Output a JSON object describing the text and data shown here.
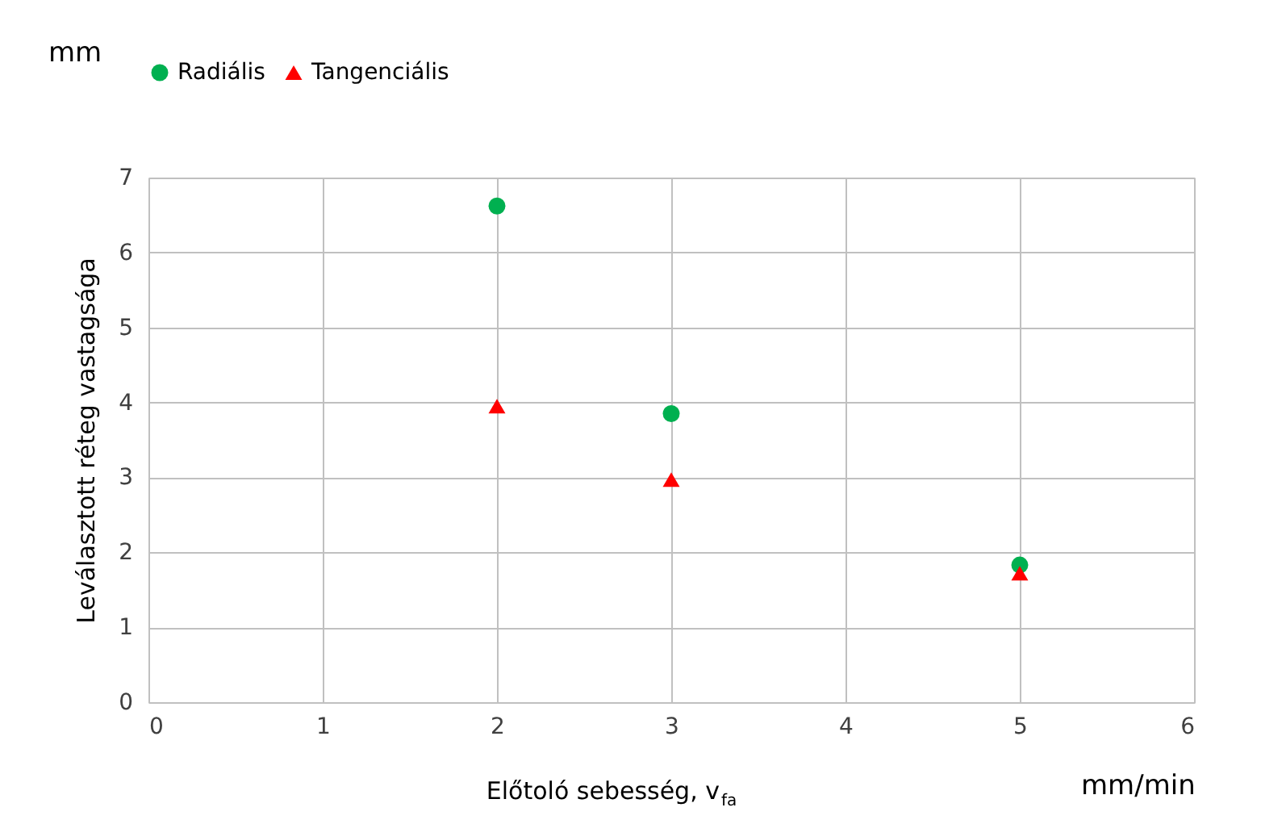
{
  "chart_data": {
    "type": "scatter",
    "xlabel": "Előtoló sebesség, v$_{fa}$",
    "ylabel": "Leválasztott réteg vastagsága",
    "annotations": [
      "mm",
      "mm/min"
    ],
    "xlim": [
      0,
      6
    ],
    "xticks": [
      0,
      1,
      2,
      3,
      4,
      5,
      6
    ],
    "ylim": [
      0,
      7
    ],
    "yticks": [
      0,
      1,
      2,
      3,
      4,
      5,
      6,
      7
    ],
    "grid": true,
    "legend": "top",
    "series": [
      {
        "name": "Radiális",
        "color": "#00b050",
        "marker": "circle",
        "x": [
          2,
          3,
          5
        ],
        "values": [
          6.62,
          3.85,
          1.83
        ]
      },
      {
        "name": "Tangenciális",
        "color": "#ff0000",
        "marker": "triangle",
        "x": [
          2,
          3,
          5
        ],
        "values": [
          3.95,
          2.97,
          1.72
        ]
      }
    ]
  }
}
